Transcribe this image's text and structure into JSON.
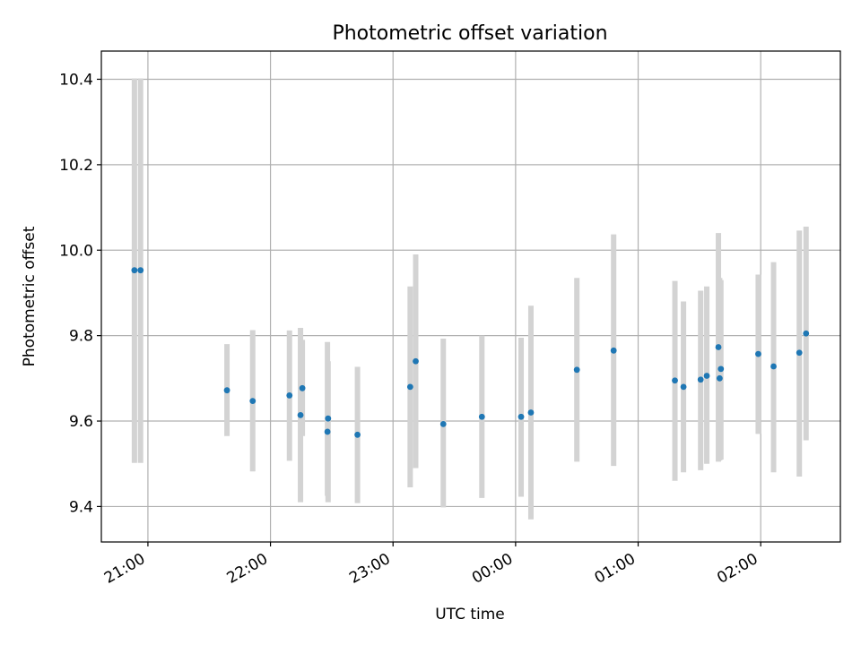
{
  "colors": {
    "marker": "#1f77b4",
    "errorbar": "#d3d3d3",
    "grid": "#b0b0b0",
    "axes": "#000000"
  },
  "chart_data": {
    "type": "scatter",
    "title": "Photometric offset variation",
    "xlabel": "UTC time",
    "ylabel": "Photometric offset",
    "grid": true,
    "x_unit": "hours since 21:00 UTC",
    "xlim": [
      -0.38,
      5.65
    ],
    "ylim": [
      9.317,
      10.466
    ],
    "xticks": [
      0,
      1,
      2,
      3,
      4,
      5
    ],
    "xtick_labels": [
      "21:00",
      "22:00",
      "23:00",
      "00:00",
      "01:00",
      "02:00"
    ],
    "yticks": [
      9.4,
      9.6,
      9.8,
      10.0,
      10.2,
      10.4
    ],
    "ytick_labels": [
      "9.4",
      "9.6",
      "9.8",
      "10.0",
      "10.2",
      "10.4"
    ],
    "x": [
      -0.11,
      -0.06,
      0.645,
      0.855,
      1.155,
      1.245,
      1.26,
      1.47,
      1.465,
      1.71,
      2.14,
      2.185,
      2.41,
      2.725,
      3.045,
      3.125,
      3.5,
      3.8,
      4.3,
      4.37,
      4.51,
      4.56,
      4.655,
      4.665,
      4.675,
      4.98,
      5.105,
      5.315,
      5.37
    ],
    "y": [
      9.953,
      9.953,
      9.672,
      9.647,
      9.66,
      9.614,
      9.677,
      9.606,
      9.575,
      9.568,
      9.68,
      9.74,
      9.593,
      9.61,
      9.61,
      9.62,
      9.72,
      9.765,
      9.695,
      9.68,
      9.697,
      9.706,
      9.773,
      9.7,
      9.722,
      9.757,
      9.728,
      9.76,
      9.805
    ],
    "yerr_low": [
      9.502,
      9.502,
      9.565,
      9.482,
      9.507,
      9.41,
      9.565,
      9.41,
      9.425,
      9.408,
      9.445,
      9.49,
      9.398,
      9.42,
      9.423,
      9.37,
      9.505,
      9.495,
      9.46,
      9.48,
      9.485,
      9.5,
      9.505,
      9.508,
      9.51,
      9.57,
      9.48,
      9.47,
      9.555
    ],
    "yerr_high": [
      10.402,
      10.402,
      9.78,
      9.813,
      9.812,
      9.818,
      9.79,
      9.74,
      9.785,
      9.727,
      9.915,
      9.99,
      9.793,
      9.8,
      9.795,
      9.87,
      9.935,
      10.037,
      9.928,
      9.88,
      9.905,
      9.915,
      10.04,
      9.935,
      9.93,
      9.943,
      9.972,
      10.046,
      10.055
    ]
  }
}
